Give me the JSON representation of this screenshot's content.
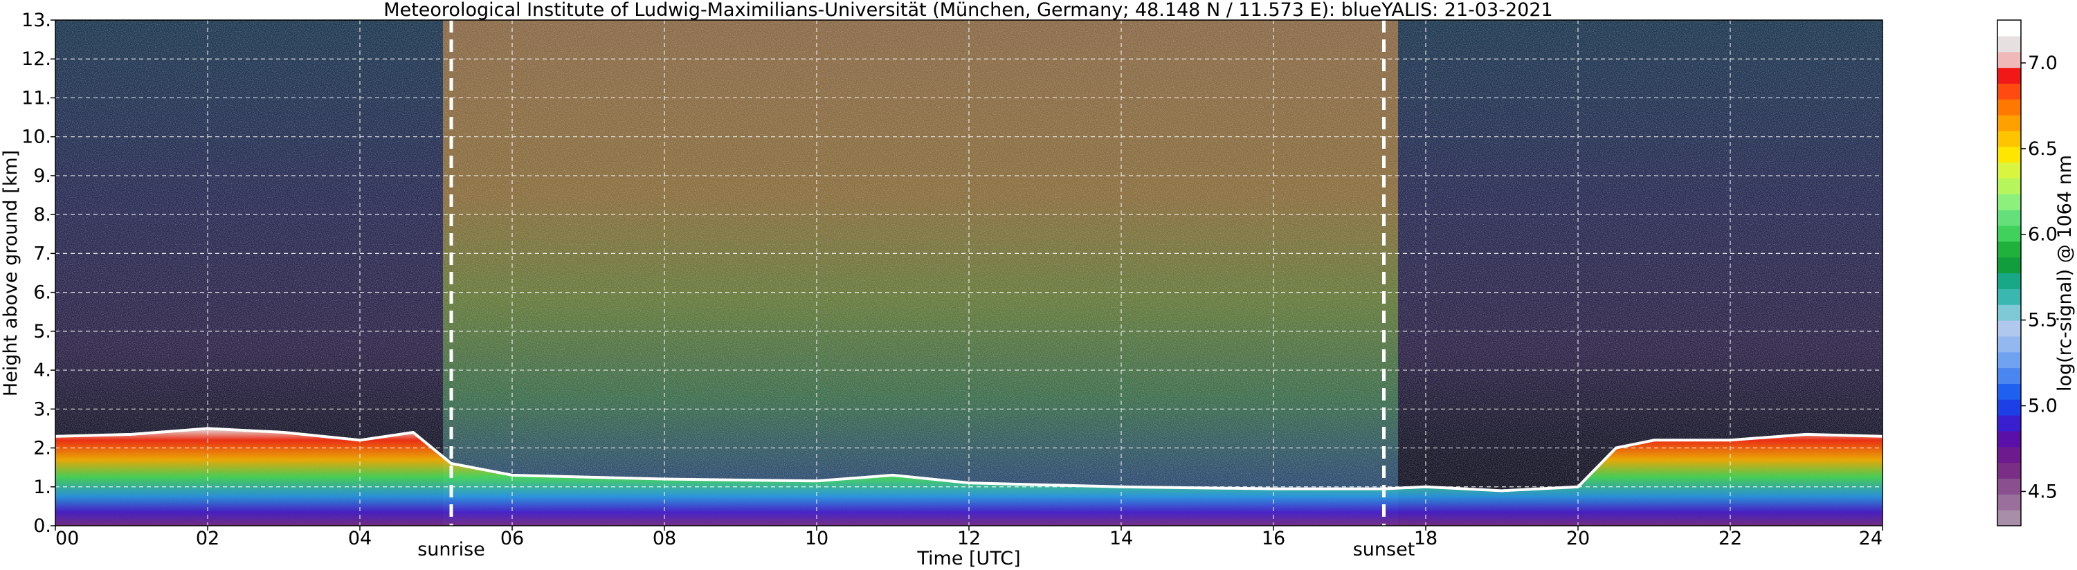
{
  "title": "Meteorological Institute of Ludwig-Maximilians-Universität (München, Germany; 48.148 N / 11.573 E):     blueYALIS: 21-03-2021",
  "chart_data": {
    "type": "heatmap",
    "title": "Meteorological Institute of Ludwig-Maximilians-Universität (München, Germany; 48.148 N / 11.573 E):     blueYALIS: 21-03-2021",
    "xlabel": "Time [UTC]",
    "ylabel": "Height above ground [km]",
    "x_ticks": [
      "00",
      "02",
      "04",
      "06",
      "08",
      "10",
      "12",
      "14",
      "16",
      "18",
      "20",
      "22",
      "24"
    ],
    "x_range": [
      0,
      24
    ],
    "y_ticks": [
      "0.",
      "1.",
      "2.",
      "3.",
      "4.",
      "5.",
      "6.",
      "7.",
      "8.",
      "9.",
      "10.",
      "11.",
      "12.",
      "13."
    ],
    "y_range": [
      0,
      13
    ],
    "grid": true,
    "grid_style": "dashed white",
    "colorbar": {
      "label": "log(rc-signal) @ 1064 nm",
      "ticks": [
        "4.5",
        "5.0",
        "5.5",
        "6.0",
        "6.5",
        "7.0"
      ],
      "range": [
        4.3,
        7.25
      ],
      "colors": [
        "#a98ea9",
        "#9b6f9b",
        "#8a4f8e",
        "#7b2e86",
        "#6e1a8f",
        "#5a0fa8",
        "#3a1fd0",
        "#1c3fe8",
        "#2060f0",
        "#4a86f0",
        "#6fa3f2",
        "#93b8f0",
        "#b0c8ee",
        "#7fc9d6",
        "#3ab8b0",
        "#18a888",
        "#119d3c",
        "#1fb13c",
        "#3fd15c",
        "#63e07a",
        "#8ef07c",
        "#b6f55c",
        "#d9f540",
        "#ffe600",
        "#ffc400",
        "#ffa000",
        "#ff7800",
        "#ff4a10",
        "#f21818",
        "#f0b8b8",
        "#e6e0e0",
        "#ffffff"
      ]
    },
    "annotations": [
      {
        "label": "sunrise",
        "time_utc": 5.2
      },
      {
        "label": "sunset",
        "time_utc": 17.45
      }
    ],
    "color_encoding": "log(rc-signal) @ 1064 nm, height (km) vs time (UTC)"
  }
}
